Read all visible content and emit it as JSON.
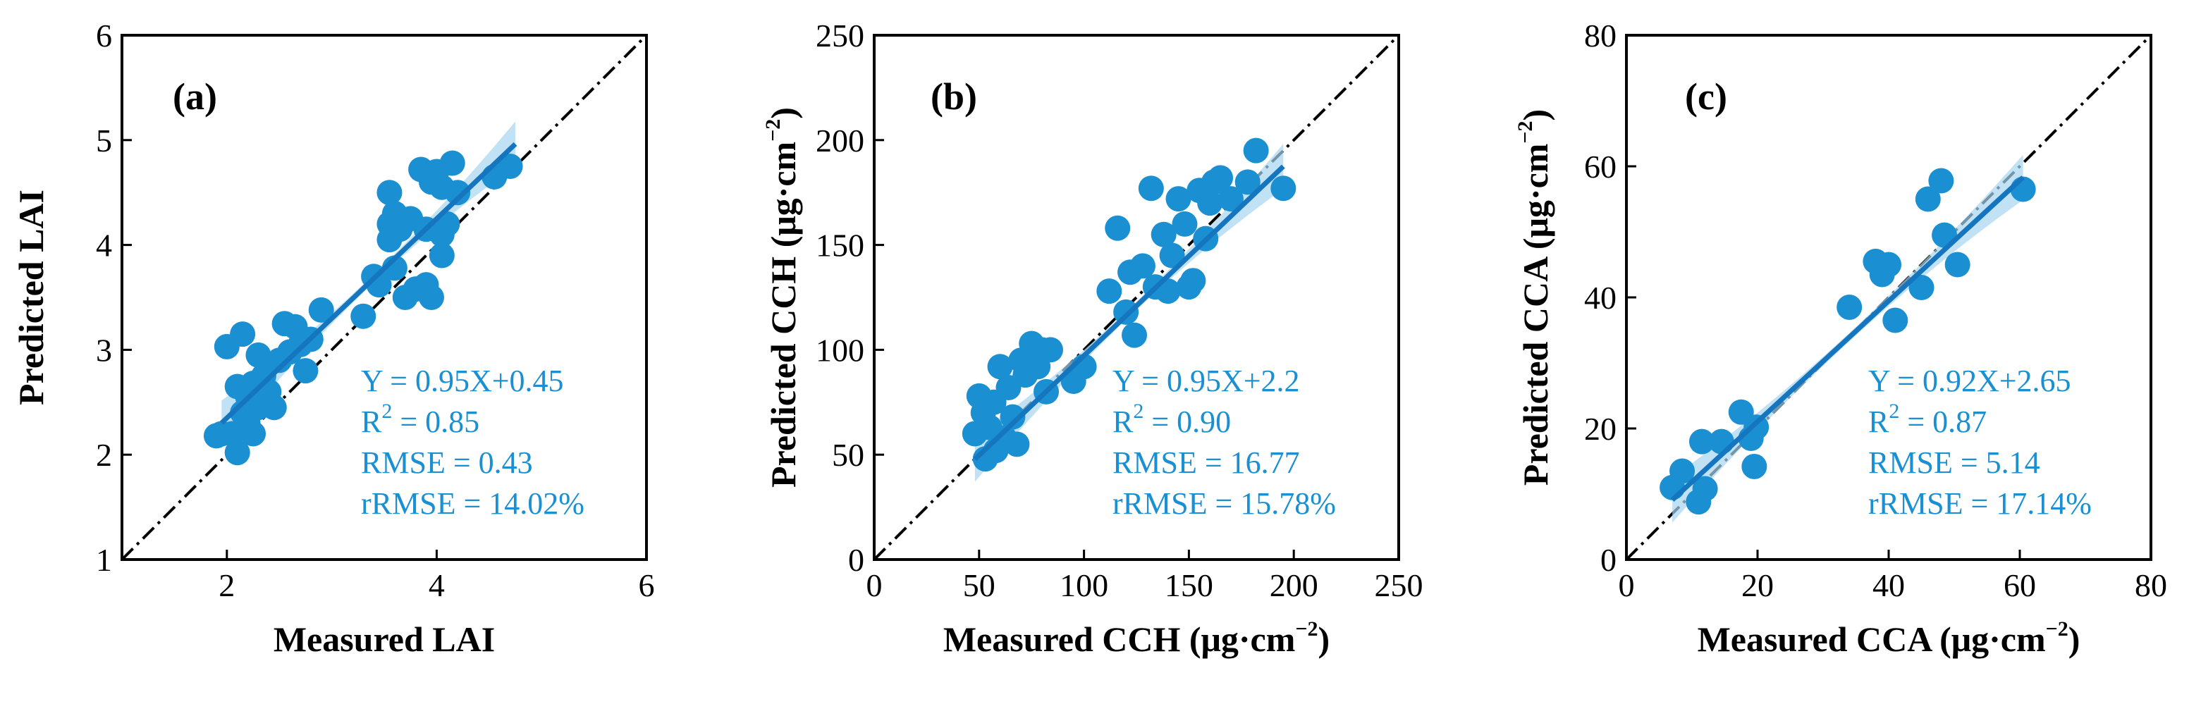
{
  "figure": {
    "point_color": "#1a8fd1",
    "fit_color": "#1576bf",
    "band_color": "#a6d4f0",
    "text_color": "#1a8fd1"
  },
  "chart_data": [
    {
      "type": "scatter",
      "panel_label": "(a)",
      "xlabel": "Measured LAI",
      "ylabel": "Predicted LAI",
      "xlim": [
        1,
        6
      ],
      "ylim": [
        1,
        6
      ],
      "xticks": [
        2,
        4,
        6
      ],
      "yticks": [
        1,
        2,
        3,
        4,
        5,
        6
      ],
      "x_tick_labels": [
        "2",
        "4",
        "6"
      ],
      "y_tick_labels": [
        "1",
        "2",
        "3",
        "4",
        "5",
        "6"
      ],
      "one_to_one_line": true,
      "fit": {
        "slope": 0.95,
        "intercept": 0.45,
        "x_range": [
          1.95,
          4.75
        ]
      },
      "stats": {
        "equation": "Y = 0.95X+0.45",
        "r2_label": "R",
        "r2_exp": "2",
        "r2_value": " = 0.85",
        "rmse": "RMSE = 0.43",
        "rrmse": "rRMSE = 14.02%"
      },
      "points": [
        [
          1.9,
          2.18
        ],
        [
          1.95,
          2.2
        ],
        [
          2.0,
          3.03
        ],
        [
          2.05,
          2.2
        ],
        [
          2.1,
          2.65
        ],
        [
          2.1,
          2.02
        ],
        [
          2.15,
          2.4
        ],
        [
          2.15,
          3.15
        ],
        [
          2.2,
          2.3
        ],
        [
          2.2,
          2.55
        ],
        [
          2.25,
          2.68
        ],
        [
          2.25,
          2.2
        ],
        [
          2.3,
          2.95
        ],
        [
          2.3,
          2.45
        ],
        [
          2.35,
          2.75
        ],
        [
          2.4,
          2.6
        ],
        [
          2.45,
          2.45
        ],
        [
          2.5,
          2.9
        ],
        [
          2.55,
          3.25
        ],
        [
          2.6,
          2.98
        ],
        [
          2.65,
          3.22
        ],
        [
          2.7,
          3.05
        ],
        [
          2.75,
          2.8
        ],
        [
          2.8,
          3.1
        ],
        [
          2.9,
          3.38
        ],
        [
          3.3,
          3.32
        ],
        [
          3.4,
          3.7
        ],
        [
          3.45,
          3.62
        ],
        [
          3.55,
          4.5
        ],
        [
          3.55,
          4.2
        ],
        [
          3.55,
          4.05
        ],
        [
          3.6,
          4.3
        ],
        [
          3.6,
          3.78
        ],
        [
          3.65,
          4.15
        ],
        [
          3.7,
          3.5
        ],
        [
          3.75,
          4.25
        ],
        [
          3.8,
          3.58
        ],
        [
          3.85,
          4.72
        ],
        [
          3.9,
          4.15
        ],
        [
          3.9,
          3.62
        ],
        [
          3.95,
          4.6
        ],
        [
          3.95,
          3.5
        ],
        [
          4.0,
          4.7
        ],
        [
          4.05,
          4.1
        ],
        [
          4.05,
          4.55
        ],
        [
          4.05,
          3.9
        ],
        [
          4.1,
          4.2
        ],
        [
          4.15,
          4.78
        ],
        [
          4.2,
          4.5
        ],
        [
          4.55,
          4.65
        ],
        [
          4.7,
          4.75
        ]
      ]
    },
    {
      "type": "scatter",
      "panel_label": "(b)",
      "xlabel": "Measured CCH (μg·cm",
      "xlabel_exp": "−2",
      "ylabel": "Predicted CCH (μg·cm",
      "ylabel_exp": "−2",
      "label_close": ")",
      "xlim": [
        0,
        250
      ],
      "ylim": [
        0,
        250
      ],
      "xticks": [
        0,
        50,
        100,
        150,
        200,
        250
      ],
      "yticks": [
        0,
        50,
        100,
        150,
        200,
        250
      ],
      "x_tick_labels": [
        "0",
        "50",
        "100",
        "150",
        "200",
        "250"
      ],
      "y_tick_labels": [
        "0",
        "50",
        "100",
        "150",
        "200",
        "250"
      ],
      "one_to_one_line": true,
      "fit": {
        "slope": 0.95,
        "intercept": 2.2,
        "x_range": [
          48,
          195
        ]
      },
      "stats": {
        "equation": "Y = 0.95X+2.2",
        "r2_label": "R",
        "r2_exp": "2",
        "r2_value": " = 0.90",
        "rmse": "RMSE = 16.77",
        "rrmse": "rRMSE = 15.78%"
      },
      "points": [
        [
          48,
          60
        ],
        [
          50,
          78
        ],
        [
          52,
          70
        ],
        [
          53,
          48
        ],
        [
          55,
          63
        ],
        [
          57,
          75
        ],
        [
          58,
          52
        ],
        [
          60,
          92
        ],
        [
          62,
          58
        ],
        [
          64,
          82
        ],
        [
          66,
          68
        ],
        [
          68,
          55
        ],
        [
          70,
          95
        ],
        [
          72,
          88
        ],
        [
          75,
          103
        ],
        [
          78,
          92
        ],
        [
          80,
          100
        ],
        [
          82,
          80
        ],
        [
          84,
          100
        ],
        [
          95,
          85
        ],
        [
          100,
          92
        ],
        [
          112,
          128
        ],
        [
          116,
          158
        ],
        [
          120,
          118
        ],
        [
          122,
          137
        ],
        [
          124,
          107
        ],
        [
          128,
          140
        ],
        [
          132,
          177
        ],
        [
          134,
          130
        ],
        [
          138,
          155
        ],
        [
          140,
          128
        ],
        [
          142,
          145
        ],
        [
          145,
          172
        ],
        [
          148,
          160
        ],
        [
          150,
          130
        ],
        [
          152,
          133
        ],
        [
          155,
          176
        ],
        [
          158,
          153
        ],
        [
          160,
          170
        ],
        [
          162,
          180
        ],
        [
          165,
          182
        ],
        [
          170,
          172
        ],
        [
          178,
          180
        ],
        [
          182,
          195
        ],
        [
          195,
          177
        ]
      ]
    },
    {
      "type": "scatter",
      "panel_label": "(c)",
      "xlabel": "Measured CCA (μg·cm",
      "xlabel_exp": "−2",
      "ylabel": "Predicted CCA (μg·cm",
      "ylabel_exp": "−2",
      "label_close": ")",
      "xlim": [
        0,
        80
      ],
      "ylim": [
        0,
        80
      ],
      "xticks": [
        0,
        20,
        40,
        60,
        80
      ],
      "yticks": [
        0,
        20,
        40,
        60,
        80
      ],
      "x_tick_labels": [
        "0",
        "20",
        "40",
        "60",
        "80"
      ],
      "y_tick_labels": [
        "0",
        "20",
        "40",
        "60",
        "80"
      ],
      "one_to_one_line": true,
      "fit": {
        "slope": 0.92,
        "intercept": 2.65,
        "x_range": [
          7,
          60.5
        ]
      },
      "stats": {
        "equation": "Y = 0.92X+2.65",
        "r2_label": "R",
        "r2_exp": "2",
        "r2_value": " = 0.87",
        "rmse": "RMSE = 5.14",
        "rrmse": "rRMSE = 17.14%"
      },
      "points": [
        [
          7,
          11
        ],
        [
          8.5,
          13.5
        ],
        [
          11,
          8.8
        ],
        [
          11.5,
          18
        ],
        [
          12,
          10.8
        ],
        [
          14.5,
          18
        ],
        [
          17.5,
          22.5
        ],
        [
          19,
          18.5
        ],
        [
          19.5,
          14.2
        ],
        [
          19.8,
          20.2
        ],
        [
          34,
          38.5
        ],
        [
          38,
          45.5
        ],
        [
          39,
          43.5
        ],
        [
          40,
          45
        ],
        [
          41,
          36.5
        ],
        [
          45,
          41.5
        ],
        [
          46,
          55
        ],
        [
          48,
          57.8
        ],
        [
          48.5,
          49.5
        ],
        [
          50.5,
          45
        ],
        [
          60.5,
          56.5
        ]
      ]
    }
  ]
}
